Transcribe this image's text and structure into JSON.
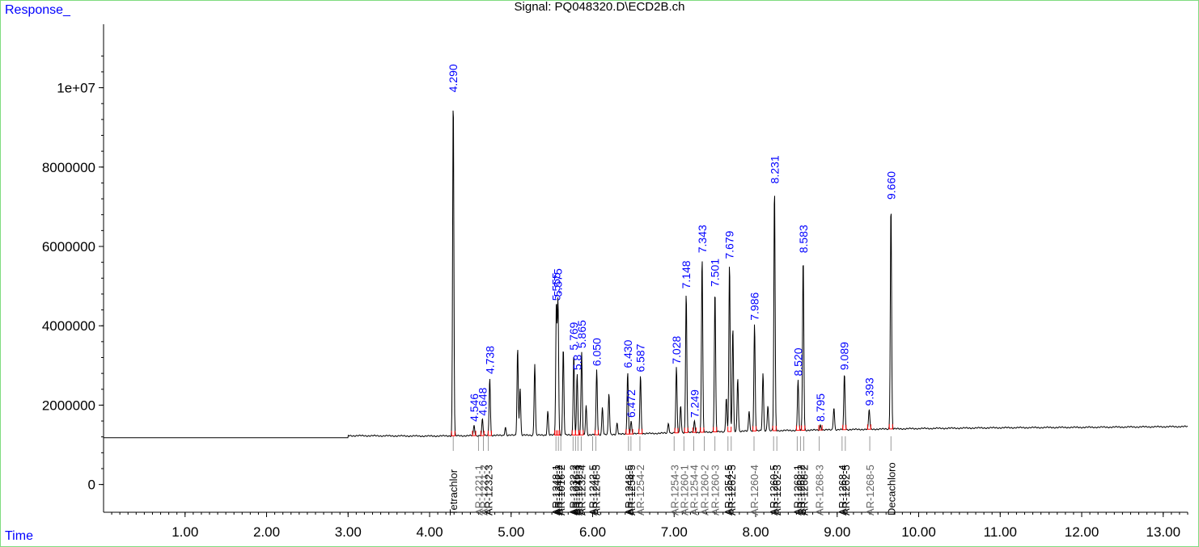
{
  "chart_data": {
    "type": "line",
    "title": "Signal: PQ048320.D\\ECD2B.ch",
    "ylabel": "Response_",
    "xlabel": "Time",
    "xlim": [
      0.0,
      13.3
    ],
    "ylim": [
      -700000,
      11600000
    ],
    "x_ticks": [
      "1.00",
      "2.00",
      "3.00",
      "4.00",
      "5.00",
      "6.00",
      "7.00",
      "8.00",
      "9.00",
      "10.00",
      "11.00",
      "12.00",
      "13.00"
    ],
    "x_tick_values": [
      1,
      2,
      3,
      4,
      5,
      6,
      7,
      8,
      9,
      10,
      11,
      12,
      13
    ],
    "y_ticks": [
      "0",
      "2000000",
      "4000000",
      "6000000",
      "8000000",
      "1e+07"
    ],
    "y_tick_values": [
      0,
      2000000,
      4000000,
      6000000,
      8000000,
      10000000
    ],
    "baseline": [
      [
        0,
        1180000
      ],
      [
        3.0,
        1180000
      ],
      [
        3.0,
        1230000
      ],
      [
        4.0,
        1220000
      ],
      [
        5.0,
        1240000
      ],
      [
        6.0,
        1250000
      ],
      [
        7.0,
        1300000
      ],
      [
        8.0,
        1350000
      ],
      [
        9.0,
        1380000
      ],
      [
        10.0,
        1410000
      ],
      [
        11.0,
        1430000
      ],
      [
        12.0,
        1440000
      ],
      [
        13.3,
        1460000
      ]
    ],
    "peaks": [
      {
        "rt": 4.29,
        "h": 9800000,
        "label": "4.290"
      },
      {
        "rt": 4.546,
        "h": 1500000,
        "label": "4.546"
      },
      {
        "rt": 4.648,
        "h": 1650000,
        "label": "4.648"
      },
      {
        "rt": 4.738,
        "h": 2700000,
        "label": "4.738"
      },
      {
        "rt": 4.93,
        "h": 1450000,
        "label": ""
      },
      {
        "rt": 5.08,
        "h": 3450000,
        "label": ""
      },
      {
        "rt": 5.11,
        "h": 2450000,
        "label": ""
      },
      {
        "rt": 5.29,
        "h": 3050000,
        "label": ""
      },
      {
        "rt": 5.45,
        "h": 1850000,
        "label": ""
      },
      {
        "rt": 5.555,
        "h": 4550000,
        "label": "5.555"
      },
      {
        "rt": 5.575,
        "h": 4650000,
        "label": "5.575"
      },
      {
        "rt": 5.64,
        "h": 3450000,
        "label": ""
      },
      {
        "rt": 5.769,
        "h": 3300000,
        "label": "5.769"
      },
      {
        "rt": 5.81,
        "h": 2800000,
        "label": "5.8"
      },
      {
        "rt": 5.865,
        "h": 3350000,
        "label": "5.865"
      },
      {
        "rt": 5.92,
        "h": 2000000,
        "label": ""
      },
      {
        "rt": 6.05,
        "h": 2900000,
        "label": "6.050"
      },
      {
        "rt": 6.12,
        "h": 1950000,
        "label": ""
      },
      {
        "rt": 6.2,
        "h": 2300000,
        "label": ""
      },
      {
        "rt": 6.3,
        "h": 1550000,
        "label": ""
      },
      {
        "rt": 6.43,
        "h": 2850000,
        "label": "6.430"
      },
      {
        "rt": 6.472,
        "h": 1600000,
        "label": "6.472"
      },
      {
        "rt": 6.587,
        "h": 2750000,
        "label": "6.587"
      },
      {
        "rt": 6.93,
        "h": 1550000,
        "label": ""
      },
      {
        "rt": 7.028,
        "h": 2950000,
        "label": "7.028"
      },
      {
        "rt": 7.08,
        "h": 2000000,
        "label": ""
      },
      {
        "rt": 7.148,
        "h": 4850000,
        "label": "7.148"
      },
      {
        "rt": 7.249,
        "h": 1600000,
        "label": "7.249"
      },
      {
        "rt": 7.343,
        "h": 5750000,
        "label": "7.343"
      },
      {
        "rt": 7.501,
        "h": 4900000,
        "label": "7.501"
      },
      {
        "rt": 7.64,
        "h": 2200000,
        "label": ""
      },
      {
        "rt": 7.679,
        "h": 5600000,
        "label": "7.679"
      },
      {
        "rt": 7.72,
        "h": 3950000,
        "label": ""
      },
      {
        "rt": 7.78,
        "h": 2700000,
        "label": ""
      },
      {
        "rt": 7.92,
        "h": 1850000,
        "label": ""
      },
      {
        "rt": 7.986,
        "h": 4050000,
        "label": "7.986"
      },
      {
        "rt": 8.09,
        "h": 2800000,
        "label": ""
      },
      {
        "rt": 8.15,
        "h": 2000000,
        "label": ""
      },
      {
        "rt": 8.231,
        "h": 7500000,
        "label": "8.231"
      },
      {
        "rt": 8.52,
        "h": 2650000,
        "label": "8.520"
      },
      {
        "rt": 8.583,
        "h": 5750000,
        "label": "8.583"
      },
      {
        "rt": 8.795,
        "h": 1500000,
        "label": "8.795"
      },
      {
        "rt": 8.96,
        "h": 1950000,
        "label": ""
      },
      {
        "rt": 9.089,
        "h": 2800000,
        "label": "9.089"
      },
      {
        "rt": 9.393,
        "h": 1900000,
        "label": "9.393"
      },
      {
        "rt": 9.66,
        "h": 7100000,
        "label": "9.660"
      }
    ],
    "compound_labels": [
      {
        "rt": 4.29,
        "name": "Tetrachlor",
        "color": "#000000"
      },
      {
        "rt": 4.6,
        "name": "AR-1221-1",
        "color": "#606060"
      },
      {
        "rt": 4.66,
        "name": "AR-1221-2",
        "color": "#606060"
      },
      {
        "rt": 4.72,
        "name": "AR-1232-3",
        "color": "#000000"
      },
      {
        "rt": 5.55,
        "name": "AR-1248-1",
        "color": "#000000"
      },
      {
        "rt": 5.58,
        "name": "AR-1242-2",
        "color": "#000000"
      },
      {
        "rt": 5.61,
        "name": "AR-1016-2",
        "color": "#000000"
      },
      {
        "rt": 5.76,
        "name": "AR-1232-2",
        "color": "#000000"
      },
      {
        "rt": 5.79,
        "name": "AR-1016-3",
        "color": "#000000"
      },
      {
        "rt": 5.82,
        "name": "AR-1242-3",
        "color": "#000000"
      },
      {
        "rt": 5.86,
        "name": "AR-1232-4",
        "color": "#000000"
      },
      {
        "rt": 6.0,
        "name": "AR-1242-5",
        "color": "#000000"
      },
      {
        "rt": 6.04,
        "name": "AR-1248-5",
        "color": "#000000"
      },
      {
        "rt": 6.44,
        "name": "AR-1248-5",
        "color": "#000000"
      },
      {
        "rt": 6.47,
        "name": "AR-1254-5",
        "color": "#000000"
      },
      {
        "rt": 6.58,
        "name": "AR-1254-2",
        "color": "#606060"
      },
      {
        "rt": 7.0,
        "name": "AR-1254-3",
        "color": "#606060"
      },
      {
        "rt": 7.12,
        "name": "AR-1260-1",
        "color": "#606060"
      },
      {
        "rt": 7.24,
        "name": "AR-1254-4",
        "color": "#606060"
      },
      {
        "rt": 7.37,
        "name": "AR-1260-2",
        "color": "#606060"
      },
      {
        "rt": 7.5,
        "name": "AR-1260-3",
        "color": "#606060"
      },
      {
        "rt": 7.66,
        "name": "AR-1254-5",
        "color": "#000000"
      },
      {
        "rt": 7.7,
        "name": "AR-1262-5",
        "color": "#000000"
      },
      {
        "rt": 7.98,
        "name": "AR-1260-4",
        "color": "#606060"
      },
      {
        "rt": 8.22,
        "name": "AR-1260-5",
        "color": "#000000"
      },
      {
        "rt": 8.26,
        "name": "AR-1262-3",
        "color": "#000000"
      },
      {
        "rt": 8.51,
        "name": "AR-1268-1",
        "color": "#000000"
      },
      {
        "rt": 8.55,
        "name": "AR-1262-2",
        "color": "#000000"
      },
      {
        "rt": 8.59,
        "name": "AR-1268-2",
        "color": "#000000"
      },
      {
        "rt": 8.78,
        "name": "AR-1268-3",
        "color": "#606060"
      },
      {
        "rt": 9.06,
        "name": "AR-1268-4",
        "color": "#000000"
      },
      {
        "rt": 9.1,
        "name": "AR-1262-5",
        "color": "#000000"
      },
      {
        "rt": 9.4,
        "name": "AR-1268-5",
        "color": "#606060"
      },
      {
        "rt": 9.66,
        "name": "Decachloro",
        "color": "#000000"
      }
    ],
    "colors": {
      "trace": "#000000",
      "label": "#0000ff",
      "integration": "#ff0000",
      "frame": "#7fdc7f"
    },
    "grid": false
  }
}
